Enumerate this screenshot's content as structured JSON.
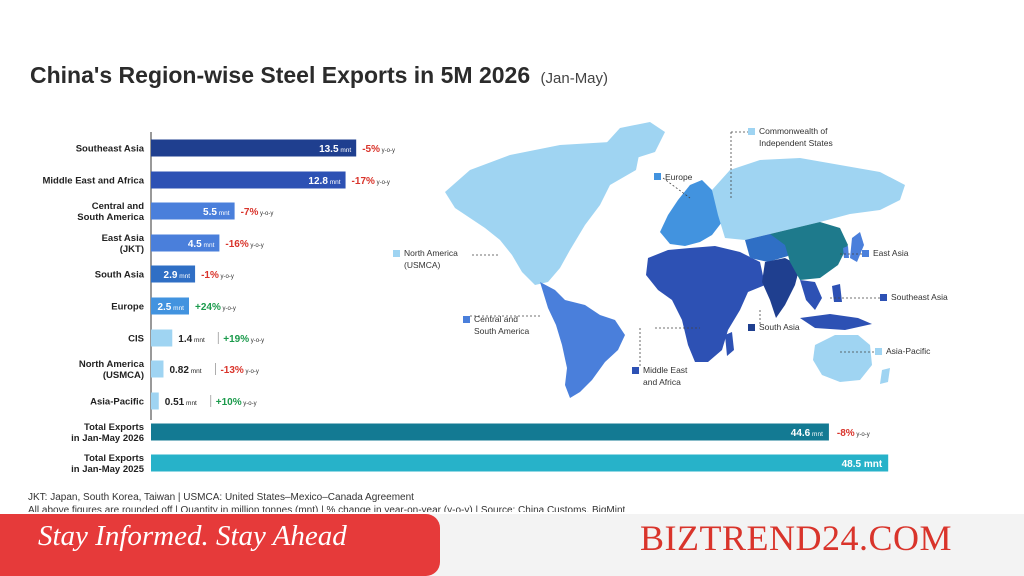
{
  "header": {
    "title": "China's Region-wise Steel Exports in 5M 2026",
    "subtitle": "(Jan-May)"
  },
  "chart_data": {
    "type": "bar",
    "orientation": "horizontal",
    "unit": "mnt",
    "change_suffix": "y-o-y",
    "grid": false,
    "rows": [
      {
        "label_lines": [
          "Southeast Asia"
        ],
        "value": 13.5,
        "change": "-5%",
        "color": "#1f3f8f"
      },
      {
        "label_lines": [
          "Middle East and Africa"
        ],
        "value": 12.8,
        "change": "-17%",
        "color": "#2d51b4"
      },
      {
        "label_lines": [
          "Central and",
          "South America"
        ],
        "value": 5.5,
        "change": "-7%",
        "color": "#4a7fdb"
      },
      {
        "label_lines": [
          "East Asia",
          "(JKT)"
        ],
        "value": 4.5,
        "change": "-16%",
        "color": "#4a7fdb"
      },
      {
        "label_lines": [
          "South Asia"
        ],
        "value": 2.9,
        "change": "-1%",
        "color": "#2f6fc5"
      },
      {
        "label_lines": [
          "Europe"
        ],
        "value": 2.5,
        "change": "+24%",
        "color": "#4293df"
      },
      {
        "label_lines": [
          "CIS"
        ],
        "value": 1.4,
        "change": "+19%",
        "color": "#9fd4f2"
      },
      {
        "label_lines": [
          "North America",
          "(USMCA)"
        ],
        "value": 0.82,
        "change": "-13%",
        "color": "#9fd4f2"
      },
      {
        "label_lines": [
          "Asia-Pacific"
        ],
        "value": 0.51,
        "change": "+10%",
        "color": "#9fd4f2"
      },
      {
        "label_lines": [
          "Total Exports",
          "in Jan-May 2026"
        ],
        "value": 44.6,
        "change": "-8%",
        "color": "#137a93"
      },
      {
        "label_lines": [
          "Total Exports",
          "in Jan-May 2025"
        ],
        "value": 48.5,
        "change": "",
        "color": "#27b2c9"
      }
    ]
  },
  "map": {
    "labels": [
      "Commonwealth of Independent States",
      "Europe",
      "North America (USMCA)",
      "East Asia",
      "Southeast Asia",
      "Central and South America",
      "South Asia",
      "Middle East and Africa",
      "Asia-Pacific"
    ],
    "colors": {
      "cis": "#9fd4f2",
      "europe": "#4293df",
      "north_america": "#9fd4f2",
      "east_asia": "#4a7fdb",
      "east_asia_china": "#1e7a8c",
      "southeast_asia": "#2d51b4",
      "latin_america": "#4a7fdb",
      "south_asia": "#1f3f8f",
      "mea": "#2d51b4",
      "asia_pacific": "#9fd4f2"
    }
  },
  "footnote": {
    "line1": "JKT: Japan, South Korea, Taiwan | USMCA: United States–Mexico–Canada Agreement",
    "line2": "All above figures are rounded off | Quantity in million tonnes (mnt) | % change in year-on-year (y-o-y) | Source: China Customs, BigMint"
  },
  "banner": {
    "slogan": "Stay Informed. Stay Ahead",
    "brand": "BIZTREND24.COM"
  }
}
